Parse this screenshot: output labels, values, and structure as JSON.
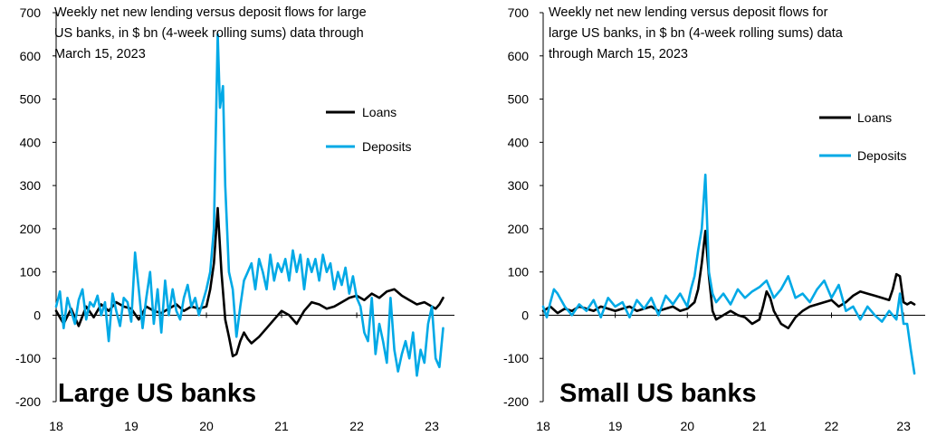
{
  "chart_data": [
    {
      "type": "line",
      "title": "Weekly net new lending versus deposit flows for large US banks, in $ bn (4-week rolling sums) data through March 15, 2023",
      "title_lines": [
        "Weekly net new lending versus deposit flows for large",
        "US banks, in $ bn (4-week rolling sums) data through",
        "March 15, 2023"
      ],
      "panel_label": "Large US banks",
      "xlabel": "",
      "ylabel": "",
      "ylim": [
        -200,
        700
      ],
      "xlim": [
        18,
        23.3
      ],
      "yticks": [
        -200,
        -100,
        0,
        100,
        200,
        300,
        400,
        500,
        600,
        700
      ],
      "ytick_labels": [
        "-200",
        "-100",
        "0",
        "100",
        "200",
        "300",
        "400",
        "500",
        "600",
        "700"
      ],
      "xticks": [
        18,
        19,
        20,
        21,
        22,
        23
      ],
      "xtick_labels": [
        "18",
        "19",
        "20",
        "21",
        "22",
        "23"
      ],
      "legend_position": "upper-right",
      "series": [
        {
          "name": "Loans",
          "color": "#000000",
          "x": [
            18.0,
            18.1,
            18.2,
            18.3,
            18.4,
            18.5,
            18.6,
            18.7,
            18.8,
            18.9,
            19.0,
            19.1,
            19.2,
            19.3,
            19.4,
            19.5,
            19.6,
            19.7,
            19.8,
            19.9,
            20.0,
            20.05,
            20.1,
            20.15,
            20.2,
            20.25,
            20.3,
            20.35,
            20.4,
            20.45,
            20.5,
            20.55,
            20.6,
            20.7,
            20.8,
            20.9,
            21.0,
            21.1,
            21.2,
            21.3,
            21.4,
            21.5,
            21.6,
            21.7,
            21.8,
            21.9,
            22.0,
            22.1,
            22.2,
            22.3,
            22.4,
            22.5,
            22.6,
            22.7,
            22.8,
            22.9,
            23.0,
            23.05,
            23.1,
            23.15
          ],
          "values": [
            10,
            -20,
            15,
            -25,
            20,
            -5,
            25,
            10,
            30,
            20,
            15,
            -10,
            20,
            10,
            5,
            15,
            25,
            10,
            20,
            15,
            20,
            60,
            120,
            248,
            100,
            -10,
            -50,
            -95,
            -90,
            -60,
            -40,
            -55,
            -65,
            -50,
            -30,
            -10,
            10,
            0,
            -20,
            10,
            30,
            25,
            15,
            20,
            30,
            40,
            45,
            35,
            50,
            40,
            55,
            60,
            45,
            35,
            25,
            30,
            20,
            15,
            25,
            40
          ]
        },
        {
          "name": "Deposits",
          "color": "#00a9e6",
          "x": [
            18.0,
            18.05,
            18.1,
            18.15,
            18.2,
            18.25,
            18.3,
            18.35,
            18.4,
            18.45,
            18.5,
            18.55,
            18.6,
            18.65,
            18.7,
            18.75,
            18.8,
            18.85,
            18.9,
            18.95,
            19.0,
            19.05,
            19.1,
            19.15,
            19.2,
            19.25,
            19.3,
            19.35,
            19.4,
            19.45,
            19.5,
            19.55,
            19.6,
            19.65,
            19.7,
            19.75,
            19.8,
            19.85,
            19.9,
            19.95,
            20.0,
            20.05,
            20.1,
            20.15,
            20.18,
            20.22,
            20.25,
            20.3,
            20.35,
            20.4,
            20.45,
            20.5,
            20.55,
            20.6,
            20.65,
            20.7,
            20.75,
            20.8,
            20.85,
            20.9,
            20.95,
            21.0,
            21.05,
            21.1,
            21.15,
            21.2,
            21.25,
            21.3,
            21.35,
            21.4,
            21.45,
            21.5,
            21.55,
            21.6,
            21.65,
            21.7,
            21.75,
            21.8,
            21.85,
            21.9,
            21.95,
            22.0,
            22.05,
            22.1,
            22.15,
            22.2,
            22.25,
            22.3,
            22.35,
            22.4,
            22.45,
            22.5,
            22.55,
            22.6,
            22.65,
            22.7,
            22.75,
            22.8,
            22.85,
            22.9,
            22.95,
            23.0,
            23.05,
            23.1,
            23.15
          ],
          "values": [
            20,
            55,
            -30,
            40,
            10,
            -20,
            35,
            60,
            -10,
            30,
            20,
            45,
            0,
            30,
            -60,
            50,
            10,
            -25,
            40,
            30,
            -15,
            145,
            60,
            -30,
            40,
            100,
            -20,
            60,
            -40,
            80,
            0,
            60,
            10,
            -10,
            40,
            70,
            20,
            40,
            0,
            30,
            60,
            100,
            200,
            650,
            480,
            530,
            300,
            100,
            60,
            -50,
            20,
            80,
            100,
            120,
            60,
            130,
            100,
            60,
            140,
            80,
            120,
            100,
            130,
            80,
            150,
            100,
            140,
            60,
            130,
            100,
            130,
            80,
            140,
            100,
            120,
            60,
            100,
            70,
            110,
            50,
            90,
            40,
            20,
            -40,
            -60,
            40,
            -90,
            -20,
            -60,
            -110,
            40,
            -80,
            -130,
            -90,
            -60,
            -100,
            -40,
            -140,
            -80,
            -110,
            -20,
            20,
            -100,
            -120,
            -30
          ]
        }
      ]
    },
    {
      "type": "line",
      "title": "Weekly net new lending versus deposit flows for large US banks, in $ bn (4-week rolling sums) data through March 15, 2023",
      "title_lines": [
        "Weekly net new lending versus deposit flows for",
        "large US banks, in $ bn (4-week rolling sums) data",
        "through March 15, 2023"
      ],
      "panel_label": "Small US banks",
      "xlabel": "",
      "ylabel": "",
      "ylim": [
        -200,
        700
      ],
      "xlim": [
        18,
        23.3
      ],
      "yticks": [
        -200,
        -100,
        0,
        100,
        200,
        300,
        400,
        500,
        600,
        700
      ],
      "ytick_labels": [
        "-200",
        "-100",
        "0",
        "100",
        "200",
        "300",
        "400",
        "500",
        "600",
        "700"
      ],
      "xticks": [
        18,
        19,
        20,
        21,
        22,
        23
      ],
      "xtick_labels": [
        "18",
        "19",
        "20",
        "21",
        "22",
        "23"
      ],
      "legend_position": "upper-right",
      "series": [
        {
          "name": "Loans",
          "color": "#000000",
          "x": [
            18.0,
            18.1,
            18.2,
            18.3,
            18.4,
            18.5,
            18.6,
            18.7,
            18.8,
            18.9,
            19.0,
            19.1,
            19.2,
            19.3,
            19.4,
            19.5,
            19.6,
            19.7,
            19.8,
            19.9,
            20.0,
            20.1,
            20.15,
            20.2,
            20.25,
            20.3,
            20.35,
            20.4,
            20.5,
            20.6,
            20.7,
            20.8,
            20.9,
            21.0,
            21.05,
            21.1,
            21.15,
            21.2,
            21.3,
            21.4,
            21.5,
            21.6,
            21.7,
            21.8,
            21.9,
            22.0,
            22.1,
            22.2,
            22.3,
            22.4,
            22.5,
            22.6,
            22.7,
            22.8,
            22.85,
            22.9,
            22.95,
            23.0,
            23.05,
            23.1,
            23.15
          ],
          "values": [
            10,
            20,
            5,
            15,
            10,
            20,
            15,
            10,
            20,
            15,
            10,
            15,
            20,
            10,
            15,
            20,
            10,
            15,
            20,
            10,
            15,
            30,
            60,
            120,
            195,
            90,
            10,
            -10,
            0,
            10,
            0,
            -5,
            -20,
            -10,
            20,
            55,
            40,
            10,
            -20,
            -30,
            -5,
            10,
            20,
            25,
            30,
            35,
            20,
            30,
            45,
            55,
            50,
            45,
            40,
            35,
            60,
            95,
            90,
            30,
            25,
            30,
            25
          ]
        },
        {
          "name": "Deposits",
          "color": "#00a9e6",
          "x": [
            18.0,
            18.05,
            18.1,
            18.15,
            18.2,
            18.3,
            18.4,
            18.5,
            18.6,
            18.7,
            18.8,
            18.9,
            19.0,
            19.1,
            19.2,
            19.3,
            19.4,
            19.5,
            19.6,
            19.7,
            19.8,
            19.9,
            20.0,
            20.05,
            20.1,
            20.15,
            20.2,
            20.25,
            20.3,
            20.35,
            20.4,
            20.5,
            20.6,
            20.7,
            20.8,
            20.9,
            21.0,
            21.1,
            21.2,
            21.3,
            21.4,
            21.5,
            21.6,
            21.7,
            21.8,
            21.9,
            22.0,
            22.1,
            22.2,
            22.3,
            22.4,
            22.5,
            22.6,
            22.7,
            22.8,
            22.9,
            22.95,
            23.0,
            23.05,
            23.1,
            23.15
          ],
          "values": [
            20,
            -5,
            30,
            60,
            50,
            20,
            0,
            25,
            10,
            35,
            -5,
            40,
            20,
            30,
            -5,
            35,
            15,
            40,
            0,
            45,
            25,
            50,
            20,
            60,
            90,
            150,
            200,
            325,
            100,
            50,
            30,
            50,
            25,
            60,
            40,
            55,
            65,
            80,
            40,
            60,
            90,
            40,
            50,
            30,
            60,
            80,
            40,
            70,
            10,
            20,
            -10,
            20,
            0,
            -15,
            10,
            -10,
            50,
            -20,
            -20,
            -80,
            -135
          ]
        }
      ]
    }
  ]
}
